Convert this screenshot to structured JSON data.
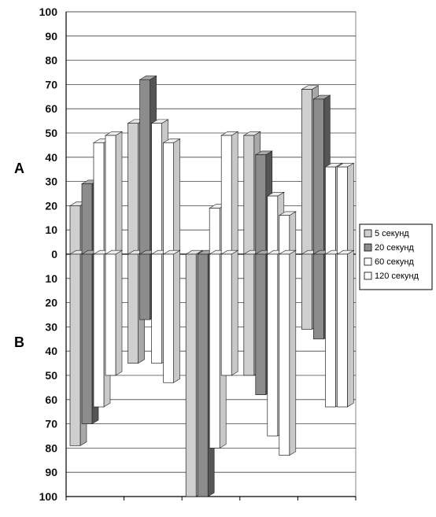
{
  "chart_data": {
    "type": "bar",
    "subtype": "3d-clustered-bar-two-panels",
    "side_labels": {
      "top": "A",
      "bottom": "B"
    },
    "upper_ticks": [
      "100",
      "90",
      "80",
      "70",
      "60",
      "50",
      "40",
      "30",
      "20",
      "10",
      "0"
    ],
    "lower_ticks": [
      "10",
      "20",
      "30",
      "40",
      "50",
      "60",
      "70",
      "80",
      "90",
      "100"
    ],
    "ylim": [
      0,
      100
    ],
    "lower_axis_direction": "downward",
    "group_count": 5,
    "grid": true,
    "legend_position": "right",
    "series": [
      {
        "name": "5 секунд",
        "color": "#cfcfcf",
        "top": "#e4e4e4",
        "side": "#a8a8a8",
        "A": [
          20,
          54,
          0,
          49,
          68
        ],
        "B": [
          79,
          45,
          100,
          50,
          31
        ]
      },
      {
        "name": "20 секунд",
        "color": "#8c8c8c",
        "top": "#a8a8a8",
        "side": "#555555",
        "A": [
          29,
          72,
          0,
          41,
          64
        ],
        "B": [
          70,
          27,
          100,
          58,
          35
        ]
      },
      {
        "name": "60 секунд",
        "color": "#ffffff",
        "top": "#f0f0f0",
        "side": "#c8c8c8",
        "A": [
          46,
          54,
          19,
          24,
          36
        ],
        "B": [
          63,
          45,
          80,
          75,
          63
        ]
      },
      {
        "name": "120 секунд",
        "color": "#ffffff",
        "top": "#f0f0f0",
        "side": "#c8c8c8",
        "A": [
          49,
          46,
          49,
          16,
          36
        ],
        "B": [
          50,
          53,
          50,
          83,
          63
        ]
      }
    ]
  }
}
